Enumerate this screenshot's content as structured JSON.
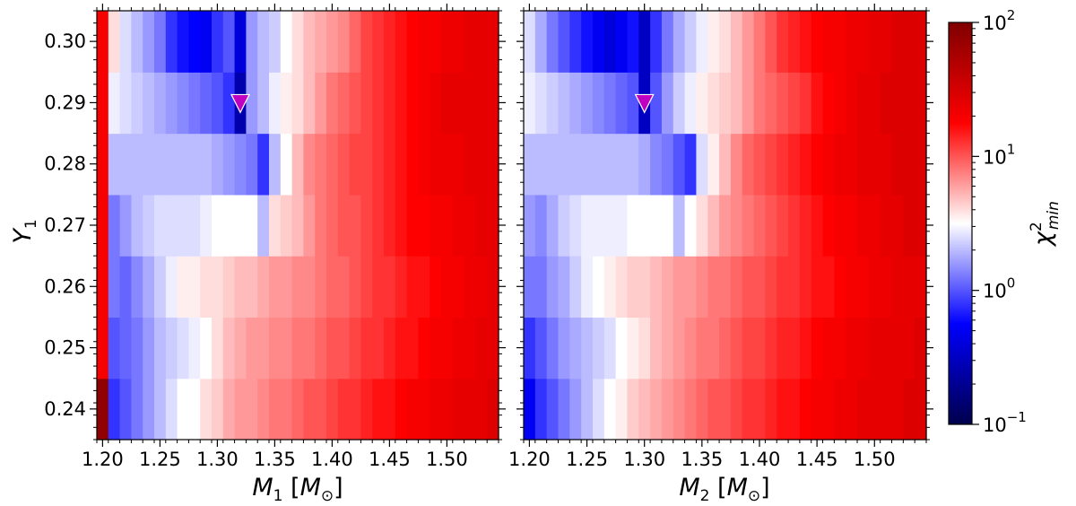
{
  "chart_data": [
    {
      "type": "heatmap",
      "title": "",
      "xlabel": "M_1 [M_⊙]",
      "ylabel": "Y_1",
      "xlim": [
        1.195,
        1.545
      ],
      "ylim": [
        0.235,
        0.305
      ],
      "x_ticks": [
        "1.20",
        "1.25",
        "1.30",
        "1.35",
        "1.40",
        "1.45",
        "1.50"
      ],
      "y_ticks": [
        "0.24",
        "0.25",
        "0.26",
        "0.27",
        "0.28",
        "0.29",
        "0.30"
      ],
      "x_centers": [
        1.2,
        1.21,
        1.22,
        1.23,
        1.24,
        1.25,
        1.26,
        1.27,
        1.28,
        1.29,
        1.3,
        1.31,
        1.32,
        1.33,
        1.34,
        1.35,
        1.36,
        1.37,
        1.38,
        1.39,
        1.4,
        1.41,
        1.42,
        1.43,
        1.44,
        1.45,
        1.46,
        1.47,
        1.48,
        1.49,
        1.5,
        1.51,
        1.52,
        1.53,
        1.54
      ],
      "y_centers": [
        0.24,
        0.25,
        0.26,
        0.27,
        0.28,
        0.29,
        0.3
      ],
      "chi2_min_grid_log10": [
        [
          1.9,
          -0.1,
          0.0,
          0.1,
          0.2,
          0.3,
          0.4,
          0.5,
          0.5,
          0.6,
          0.65,
          0.75,
          0.8,
          0.8,
          0.85,
          0.9,
          0.9,
          0.95,
          1.0,
          1.0,
          1.05,
          1.1,
          1.1,
          1.15,
          1.2,
          1.2,
          1.25,
          1.3,
          1.3,
          1.35,
          1.35,
          1.4,
          1.4,
          1.4,
          1.45
        ],
        [
          1.3,
          0.0,
          0.05,
          0.1,
          0.2,
          0.3,
          0.35,
          0.4,
          0.45,
          0.5,
          0.6,
          0.7,
          0.75,
          0.8,
          0.8,
          0.85,
          0.85,
          0.9,
          0.9,
          0.95,
          1.0,
          1.0,
          1.05,
          1.1,
          1.1,
          1.15,
          1.2,
          1.2,
          1.25,
          1.3,
          1.3,
          1.35,
          1.35,
          1.4,
          1.4
        ],
        [
          1.3,
          0.1,
          0.05,
          0.15,
          0.25,
          0.35,
          0.45,
          0.55,
          0.55,
          0.6,
          0.6,
          0.65,
          0.7,
          0.7,
          0.75,
          0.8,
          0.8,
          0.85,
          0.85,
          0.9,
          0.95,
          0.95,
          1.0,
          1.05,
          1.1,
          1.1,
          1.15,
          1.2,
          1.2,
          1.25,
          1.3,
          1.3,
          1.35,
          1.35,
          1.4
        ],
        [
          1.3,
          0.1,
          0.2,
          0.3,
          0.35,
          0.4,
          0.4,
          0.4,
          0.4,
          0.45,
          0.5,
          0.5,
          0.5,
          0.5,
          0.3,
          0.6,
          0.65,
          0.7,
          0.8,
          0.9,
          0.95,
          1.0,
          1.0,
          1.05,
          1.1,
          1.15,
          1.2,
          1.25,
          1.25,
          1.3,
          1.3,
          1.35,
          1.35,
          1.4,
          1.4
        ],
        [
          1.3,
          0.3,
          0.3,
          0.3,
          0.3,
          0.3,
          0.3,
          0.3,
          0.3,
          0.3,
          0.25,
          0.2,
          0.15,
          0.1,
          -0.1,
          0.3,
          0.5,
          0.7,
          0.85,
          0.9,
          0.95,
          1.0,
          1.05,
          1.05,
          1.1,
          1.15,
          1.2,
          1.25,
          1.3,
          1.35,
          1.35,
          1.35,
          1.4,
          1.4,
          1.4
        ],
        [
          1.3,
          0.45,
          0.4,
          0.35,
          0.3,
          0.25,
          0.2,
          0.15,
          0.1,
          0.05,
          0.0,
          -0.1,
          -0.6,
          0.2,
          0.3,
          0.45,
          0.55,
          0.6,
          0.7,
          0.8,
          0.9,
          0.95,
          1.0,
          1.05,
          1.1,
          1.15,
          1.2,
          1.25,
          1.3,
          1.35,
          1.4,
          1.4,
          1.4,
          1.4,
          1.4
        ],
        [
          1.3,
          0.6,
          0.4,
          0.3,
          0.2,
          0.1,
          -0.1,
          -0.2,
          -0.25,
          -0.3,
          -0.1,
          0.0,
          -0.4,
          0.2,
          0.3,
          0.35,
          0.5,
          0.6,
          0.7,
          0.75,
          0.8,
          0.85,
          0.95,
          1.05,
          1.1,
          1.15,
          1.2,
          1.25,
          1.3,
          1.3,
          1.35,
          1.35,
          1.4,
          1.4,
          1.4
        ]
      ],
      "best_fit": {
        "x": 1.32,
        "y": 0.29,
        "marker": "triangle-down",
        "color": "#c000c0"
      }
    },
    {
      "type": "heatmap",
      "title": "",
      "xlabel": "M_2 [M_⊙]",
      "ylabel": "",
      "xlim": [
        1.195,
        1.545
      ],
      "ylim": [
        0.235,
        0.305
      ],
      "x_ticks": [
        "1.20",
        "1.25",
        "1.30",
        "1.35",
        "1.40",
        "1.45",
        "1.50"
      ],
      "y_ticks": [],
      "x_centers": [
        1.2,
        1.21,
        1.22,
        1.23,
        1.24,
        1.25,
        1.26,
        1.27,
        1.28,
        1.29,
        1.3,
        1.31,
        1.32,
        1.33,
        1.34,
        1.35,
        1.36,
        1.37,
        1.38,
        1.39,
        1.4,
        1.41,
        1.42,
        1.43,
        1.44,
        1.45,
        1.46,
        1.47,
        1.48,
        1.49,
        1.5,
        1.51,
        1.52,
        1.53,
        1.54
      ],
      "y_centers": [
        0.24,
        0.25,
        0.26,
        0.27,
        0.28,
        0.29,
        0.3
      ],
      "chi2_min_grid_log10": [
        [
          -0.3,
          -0.1,
          0.0,
          0.1,
          0.2,
          0.3,
          0.4,
          0.5,
          0.55,
          0.65,
          0.7,
          0.75,
          0.8,
          0.85,
          0.9,
          0.95,
          1.0,
          1.0,
          1.05,
          1.1,
          1.1,
          1.15,
          1.2,
          1.2,
          1.25,
          1.3,
          1.3,
          1.35,
          1.35,
          1.4,
          1.4,
          1.4,
          1.4,
          1.45,
          1.45
        ],
        [
          -0.1,
          0.0,
          0.1,
          0.2,
          0.25,
          0.3,
          0.35,
          0.4,
          0.5,
          0.55,
          0.6,
          0.7,
          0.75,
          0.8,
          0.85,
          0.9,
          0.9,
          0.95,
          1.0,
          1.05,
          1.05,
          1.1,
          1.15,
          1.15,
          1.2,
          1.25,
          1.3,
          1.3,
          1.35,
          1.35,
          1.4,
          1.4,
          1.4,
          1.4,
          1.45
        ],
        [
          0.1,
          0.1,
          0.2,
          0.25,
          0.35,
          0.45,
          0.5,
          0.55,
          0.6,
          0.65,
          0.65,
          0.7,
          0.75,
          0.8,
          0.8,
          0.85,
          0.9,
          0.9,
          0.95,
          1.0,
          1.0,
          1.05,
          1.1,
          1.1,
          1.15,
          1.2,
          1.2,
          1.25,
          1.3,
          1.3,
          1.35,
          1.35,
          1.4,
          1.4,
          1.4
        ],
        [
          0.2,
          0.15,
          0.25,
          0.35,
          0.4,
          0.45,
          0.45,
          0.45,
          0.45,
          0.5,
          0.5,
          0.5,
          0.5,
          0.3,
          0.5,
          0.6,
          0.7,
          0.8,
          0.85,
          0.9,
          0.95,
          1.0,
          1.05,
          1.1,
          1.15,
          1.2,
          1.25,
          1.3,
          1.3,
          1.35,
          1.35,
          1.4,
          1.4,
          1.45,
          1.45
        ],
        [
          0.3,
          0.3,
          0.3,
          0.3,
          0.3,
          0.3,
          0.3,
          0.3,
          0.3,
          0.3,
          0.25,
          0.15,
          0.1,
          0.0,
          -0.1,
          0.4,
          0.55,
          0.7,
          0.85,
          0.95,
          1.0,
          1.05,
          1.1,
          1.15,
          1.2,
          1.25,
          1.3,
          1.35,
          1.35,
          1.4,
          1.4,
          1.4,
          1.45,
          1.45,
          1.45
        ],
        [
          0.45,
          0.4,
          0.35,
          0.3,
          0.25,
          0.2,
          0.15,
          0.1,
          0.05,
          0.0,
          -0.5,
          0.0,
          0.2,
          0.35,
          0.45,
          0.55,
          0.6,
          0.65,
          0.7,
          0.8,
          0.9,
          0.95,
          1.0,
          1.05,
          1.1,
          1.2,
          1.25,
          1.3,
          1.35,
          1.4,
          1.4,
          1.45,
          1.45,
          1.45,
          1.45
        ],
        [
          0.4,
          0.25,
          0.1,
          0.0,
          -0.1,
          -0.2,
          -0.3,
          -0.4,
          -0.3,
          -0.2,
          -0.5,
          -0.1,
          0.1,
          0.25,
          0.35,
          0.45,
          0.55,
          0.6,
          0.7,
          0.8,
          0.9,
          1.0,
          1.1,
          1.15,
          1.2,
          1.25,
          1.3,
          1.3,
          1.35,
          1.35,
          1.4,
          1.4,
          1.45,
          1.45,
          1.45
        ]
      ],
      "best_fit": {
        "x": 1.3,
        "y": 0.29,
        "marker": "triangle-down",
        "color": "#c000c0"
      }
    }
  ],
  "colorbar": {
    "label": "χ²_min",
    "scale": "log",
    "range": [
      0.1,
      100
    ],
    "colormap": "seismic",
    "tick_labels": [
      {
        "base": "10",
        "exp": "2",
        "value": 100
      },
      {
        "base": "10",
        "exp": "1",
        "value": 10
      },
      {
        "base": "10",
        "exp": "0",
        "value": 1
      },
      {
        "base": "10",
        "exp": "−1",
        "value": 0.1
      }
    ]
  }
}
